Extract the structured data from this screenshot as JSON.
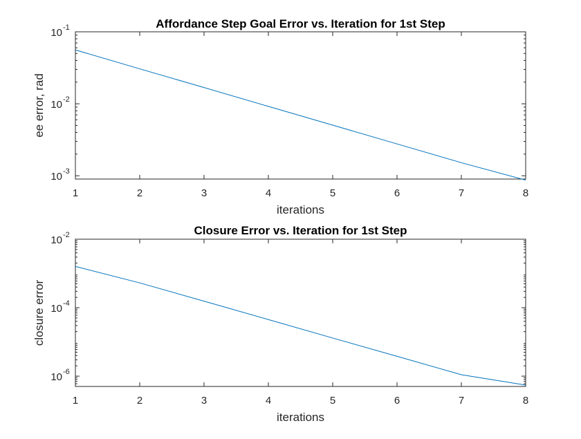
{
  "chart_data": [
    {
      "type": "line",
      "title": "Affordance Step Goal Error vs. Iteration for 1st Step",
      "xlabel": "iterations",
      "ylabel": "ee error, rad",
      "yscale": "log",
      "xlim": [
        1,
        8
      ],
      "ylim": [
        0.0009,
        0.1
      ],
      "x_ticks": [
        1,
        2,
        3,
        4,
        5,
        6,
        7,
        8
      ],
      "y_ticks": [
        {
          "value": 0.001,
          "base": "10",
          "exp": "-3"
        },
        {
          "value": 0.01,
          "base": "10",
          "exp": "-2"
        },
        {
          "value": 0.1,
          "base": "10",
          "exp": "-1"
        }
      ],
      "grid": false,
      "color": "#0072bd",
      "series": [
        {
          "x": [
            1,
            2,
            3,
            4,
            5,
            6,
            7,
            8
          ],
          "y": [
            0.056,
            0.0306,
            0.0168,
            0.0092,
            0.00505,
            0.00277,
            0.00152,
            0.00087
          ]
        }
      ]
    },
    {
      "type": "line",
      "title": "Closure Error vs. Iteration for 1st Step",
      "xlabel": "iterations",
      "ylabel": "closure error",
      "yscale": "log",
      "xlim": [
        1,
        8
      ],
      "ylim": [
        5e-07,
        0.01
      ],
      "x_ticks": [
        1,
        2,
        3,
        4,
        5,
        6,
        7,
        8
      ],
      "y_ticks": [
        {
          "value": 1e-06,
          "base": "10",
          "exp": "-6"
        },
        {
          "value": 0.0001,
          "base": "10",
          "exp": "-4"
        },
        {
          "value": 0.01,
          "base": "10",
          "exp": "-2"
        }
      ],
      "grid": false,
      "color": "#0072bd",
      "series": [
        {
          "x": [
            1,
            2,
            3,
            4,
            5,
            6,
            7,
            8
          ],
          "y": [
            0.0016,
            0.00053,
            0.000155,
            4.5e-05,
            1.3e-05,
            3.8e-06,
            1.1e-06,
            5.5e-07
          ]
        }
      ]
    }
  ]
}
